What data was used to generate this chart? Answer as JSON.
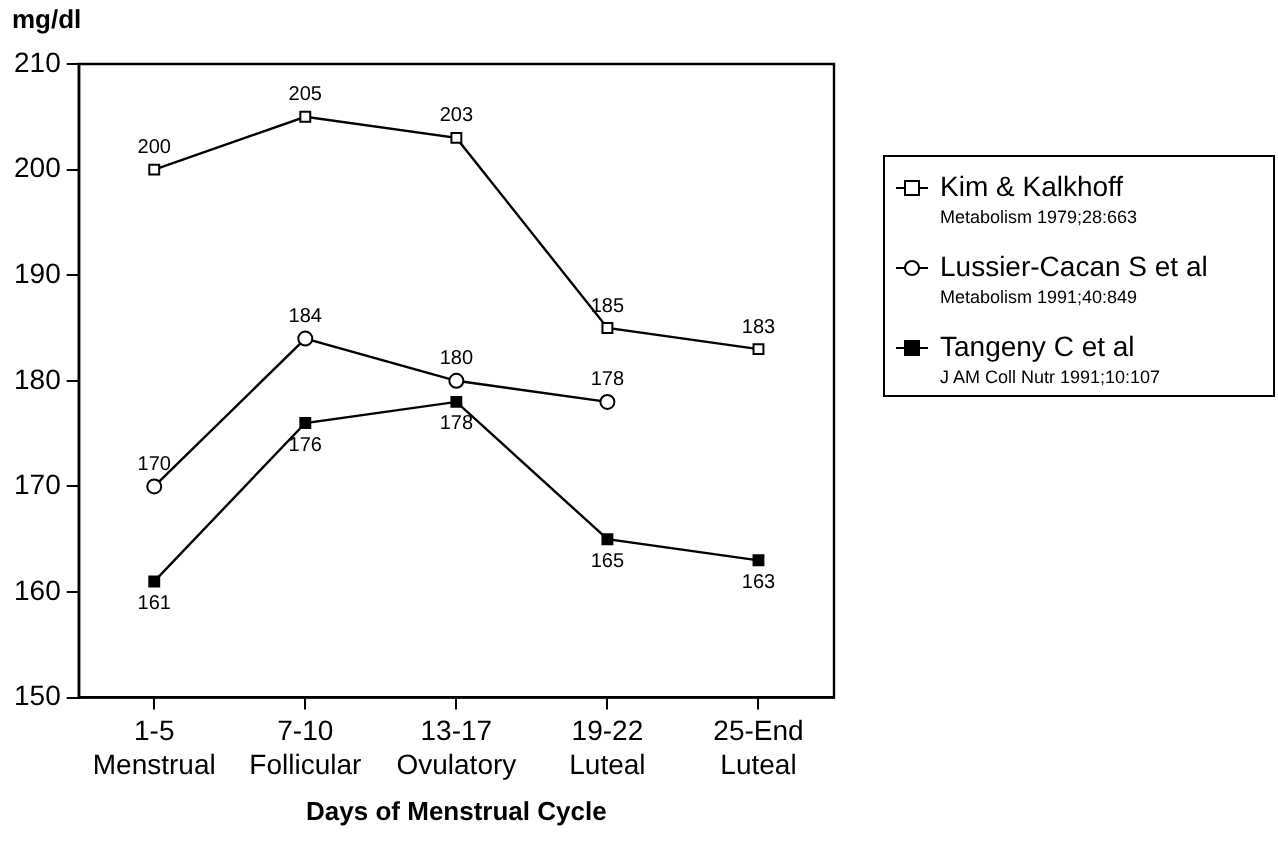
{
  "chart_data": {
    "type": "line",
    "ylabel": "mg/dl",
    "xlabel": "Days of Menstrual Cycle",
    "categories": [
      "1-5 Menstrual",
      "7-10 Follicular",
      "13-17 Ovulatory",
      "19-22 Luteal",
      "25-End Luteal"
    ],
    "series": [
      {
        "name": "Kim & Kalkhoff",
        "color": "#000000",
        "marker": "square",
        "values": [
          200,
          205,
          203,
          185,
          183
        ]
      },
      {
        "name": "Lussier-Cacan S et al",
        "color": "#000000",
        "marker": "circle",
        "values": [
          170,
          184,
          180,
          178,
          null
        ]
      },
      {
        "name": "Tangeny C et al",
        "color": "#000000",
        "marker": "square",
        "values": [
          161,
          176,
          178,
          165,
          163
        ]
      }
    ],
    "annotations": [
      "Metabolism 1979;28:663",
      "Metabolism 1991;40:849",
      "J AM Coll Nutr 1991;10:107"
    ],
    "ylim": [
      150,
      210
    ],
    "yticks": [
      150,
      160,
      170,
      180,
      190,
      200,
      210
    ],
    "grid": false,
    "legend": "right",
    "data_labels": true
  }
}
